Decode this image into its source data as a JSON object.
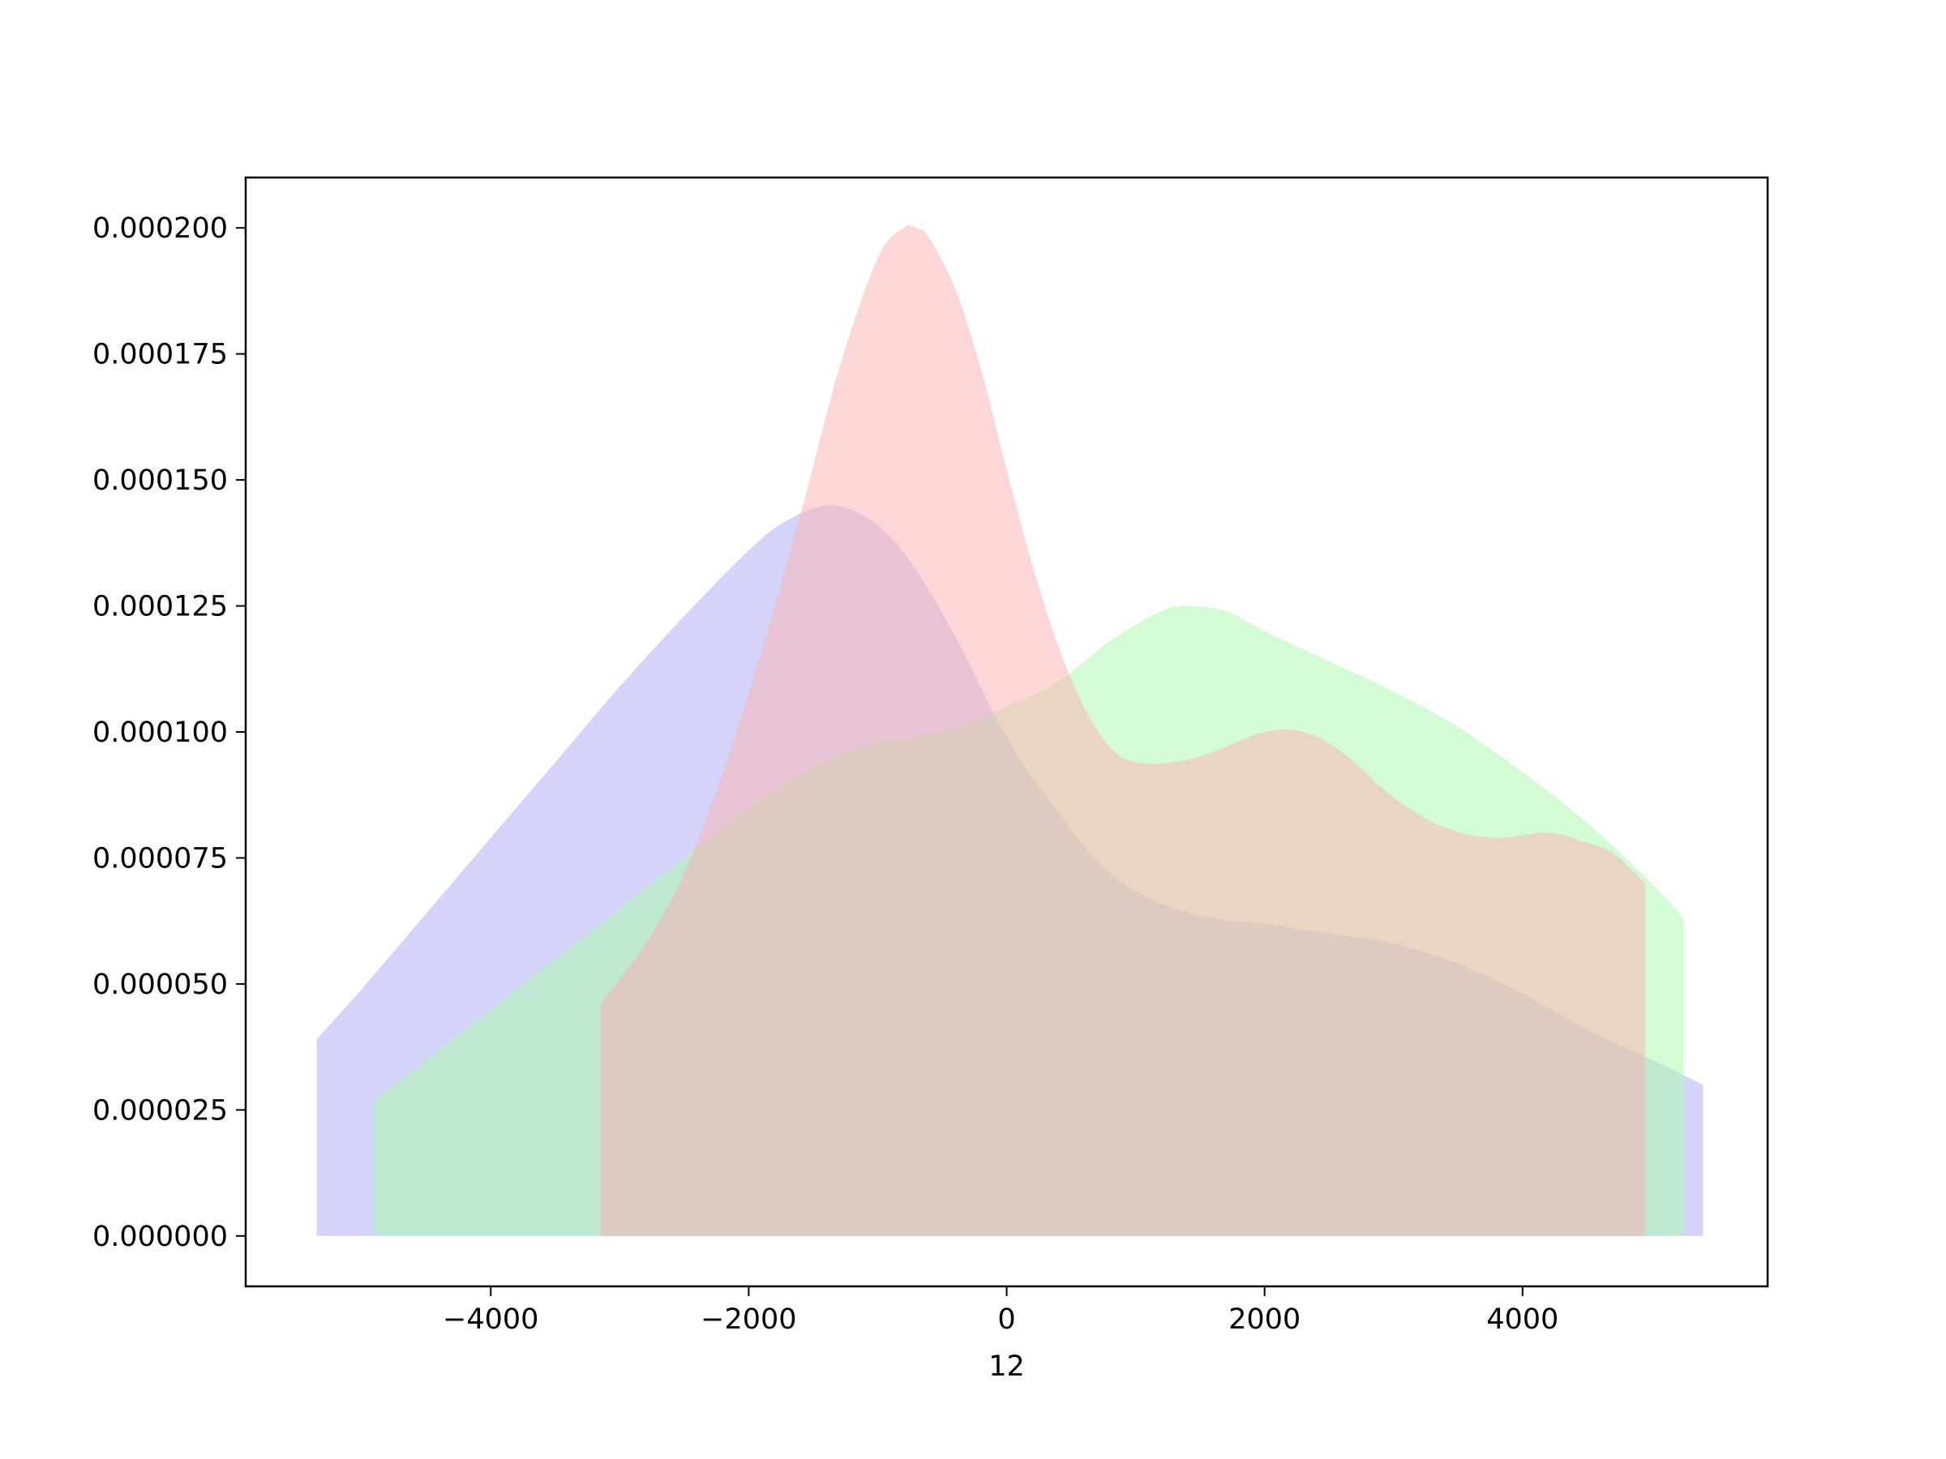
{
  "chart_data": {
    "type": "area",
    "title": "",
    "xlabel": "12",
    "ylabel": "",
    "xlim": [
      -5900,
      5900
    ],
    "ylim": [
      -1e-05,
      0.00021
    ],
    "xticks": [
      -4000,
      -2000,
      0,
      2000,
      4000
    ],
    "xtick_labels": [
      "−4000",
      "−2000",
      "0",
      "2000",
      "4000"
    ],
    "yticks": [
      0,
      2.5e-05,
      5e-05,
      7.5e-05,
      0.0001,
      0.000125,
      0.00015,
      0.000175,
      0.0002
    ],
    "ytick_labels": [
      "0.000000",
      "0.000025",
      "0.000050",
      "0.000075",
      "0.000100",
      "0.000125",
      "0.000150",
      "0.000175",
      "0.000200"
    ],
    "grid": false,
    "legend": "none",
    "series": [
      {
        "color": "#aaaaf7",
        "x": [
          -5350,
          -5000,
          -4500,
          -4000,
          -3500,
          -3000,
          -2500,
          -2000,
          -1700,
          -1350,
          -1000,
          -700,
          -400,
          0,
          400,
          800,
          1200,
          1600,
          2000,
          2500,
          3000,
          3500,
          4000,
          4500,
          5000,
          5400
        ],
        "y": [
          3.9e-05,
          4.9e-05,
          6.4e-05,
          7.9e-05,
          9.4e-05,
          0.000109,
          0.000123,
          0.000136,
          0.000142,
          0.000145,
          0.000141,
          0.000132,
          0.000119,
          9.9e-05,
          8.4e-05,
          7.2e-05,
          6.6e-05,
          6.3e-05,
          6.2e-05,
          6e-05,
          5.8e-05,
          5.4e-05,
          4.8e-05,
          4.1e-05,
          3.5e-05,
          3e-05
        ]
      },
      {
        "color": "#aaf9aa",
        "x": [
          -4900,
          -4500,
          -4000,
          -3500,
          -3000,
          -2500,
          -2000,
          -1500,
          -1000,
          -500,
          0,
          400,
          800,
          1200,
          1400,
          1700,
          2000,
          2500,
          3000,
          3500,
          4000,
          4500,
          5000,
          5250
        ],
        "y": [
          2.7e-05,
          3.5e-05,
          4.5e-05,
          5.5e-05,
          6.5e-05,
          7.5e-05,
          8.5e-05,
          9.3e-05,
          9.8e-05,
          0.0001,
          0.000105,
          0.00011,
          0.000118,
          0.000124,
          0.000125,
          0.000124,
          0.00012,
          0.000114,
          0.000108,
          0.000101,
          9.2e-05,
          8.2e-05,
          7e-05,
          6.3e-05
        ]
      },
      {
        "color": "#fcafaf",
        "x": [
          -3150,
          -2800,
          -2500,
          -2200,
          -1900,
          -1600,
          -1300,
          -1000,
          -800,
          -700,
          -600,
          -400,
          -200,
          0,
          200,
          400,
          600,
          800,
          1000,
          1300,
          1600,
          2000,
          2300,
          2600,
          3000,
          3400,
          3800,
          4200,
          4500,
          4700,
          4950
        ],
        "y": [
          4.6e-05,
          5.8e-05,
          7.2e-05,
          9.2e-05,
          0.000116,
          0.000143,
          0.000172,
          0.000194,
          0.0002,
          0.0002,
          0.000198,
          0.000188,
          0.000172,
          0.000152,
          0.000133,
          0.000117,
          0.000105,
          9.7e-05,
          9.4e-05,
          9.4e-05,
          9.6e-05,
          0.0001,
          0.0001,
          9.6e-05,
          8.7e-05,
          8.1e-05,
          7.9e-05,
          8e-05,
          7.8e-05,
          7.6e-05,
          7e-05
        ]
      }
    ]
  }
}
